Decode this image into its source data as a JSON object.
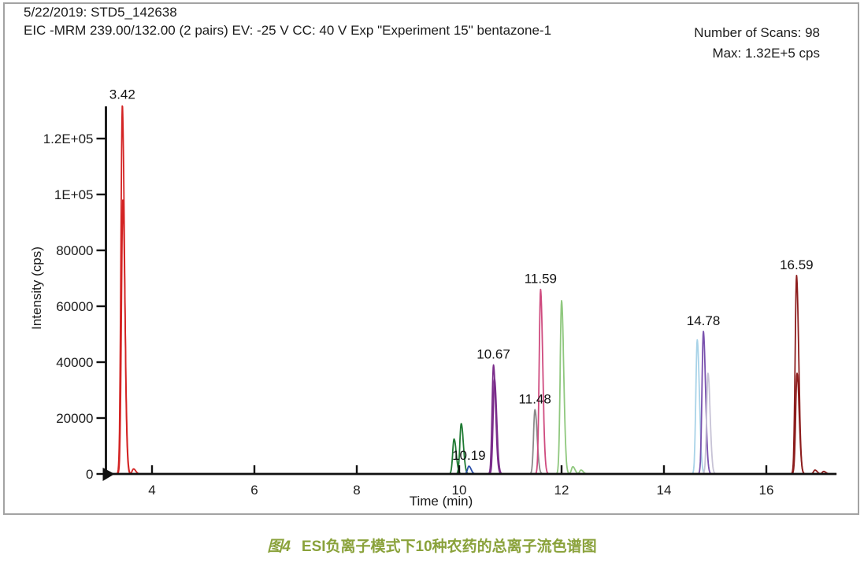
{
  "header": {
    "line1": "5/22/2019: STD5_142638",
    "line2": "EIC -MRM 239.00/132.00 (2 pairs) EV: -25 V CC: 40 V Exp \"Experiment 15\" bentazone-1"
  },
  "info": {
    "scans": "Number of Scans: 98",
    "max": "Max: 1.32E+5 cps"
  },
  "caption": {
    "figure_number": "图4",
    "text": "ESI负离子模式下10种农药的总离子流色谱图",
    "color": "#8aa23b"
  },
  "chart_data": {
    "type": "line",
    "subtype": "chromatogram",
    "xlabel": "Time (min)",
    "ylabel": "Intensity (cps)",
    "xlim": [
      3.1,
      17.37
    ],
    "ylim": [
      0,
      131500
    ],
    "grid": false,
    "legend": "none",
    "x_ticks": {
      "values": [
        4,
        6,
        8,
        10,
        12,
        14,
        16
      ]
    },
    "y_ticks": {
      "values": [
        0,
        20000,
        40000,
        60000,
        80000,
        100000,
        120000
      ],
      "labels": [
        "0",
        "20000",
        "40000",
        "60000",
        "80000",
        "1E+05",
        "1.2E+05"
      ]
    },
    "axis_color": "#111111",
    "origin_marker": "right-pointing-triangle",
    "peaks": [
      {
        "rt": 3.42,
        "intensity": 132000,
        "color": "#d42424",
        "label": "3.42"
      },
      {
        "rt": 3.43,
        "intensity": 98000,
        "color": "#d42424"
      },
      {
        "rt": 3.64,
        "intensity": 1800,
        "color": "#d42424"
      },
      {
        "rt": 9.9,
        "intensity": 12500,
        "color": "#1f7a33"
      },
      {
        "rt": 10.04,
        "intensity": 18000,
        "color": "#1f7a33"
      },
      {
        "rt": 10.19,
        "intensity": 2800,
        "color": "#2b4fa8",
        "label": "10.19"
      },
      {
        "rt": 10.67,
        "intensity": 39000,
        "color": "#7b2d8b",
        "label": "10.67"
      },
      {
        "rt": 10.69,
        "intensity": 34000,
        "color": "#7b2d8b"
      },
      {
        "rt": 11.48,
        "intensity": 23000,
        "color": "#8a8a8a",
        "label": "11.48"
      },
      {
        "rt": 11.59,
        "intensity": 66000,
        "color": "#cf4b7f",
        "label": "11.59"
      },
      {
        "rt": 12.0,
        "intensity": 62000,
        "color": "#8fc87e"
      },
      {
        "rt": 12.22,
        "intensity": 2600,
        "color": "#8fc87e"
      },
      {
        "rt": 12.38,
        "intensity": 1400,
        "color": "#8fc87e"
      },
      {
        "rt": 14.65,
        "intensity": 48000,
        "color": "#a9d3e8"
      },
      {
        "rt": 14.77,
        "intensity": 51000,
        "color": "#7a52ae",
        "label": "14.78"
      },
      {
        "rt": 14.86,
        "intensity": 36000,
        "color": "#c7c3d6"
      },
      {
        "rt": 16.59,
        "intensity": 71000,
        "color": "#8d1d1d",
        "label": "16.59"
      },
      {
        "rt": 16.6,
        "intensity": 36000,
        "color": "#8d1d1d"
      },
      {
        "rt": 16.95,
        "intensity": 1400,
        "color": "#8d1d1d"
      },
      {
        "rt": 17.12,
        "intensity": 900,
        "color": "#8d1d1d"
      }
    ]
  }
}
